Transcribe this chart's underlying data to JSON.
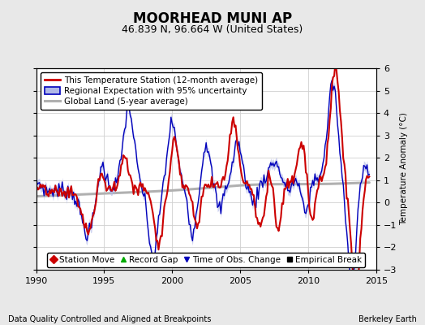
{
  "title": "MOORHEAD MUNI AP",
  "subtitle": "46.839 N, 96.664 W (United States)",
  "ylabel": "Temperature Anomaly (°C)",
  "xlabel_left": "Data Quality Controlled and Aligned at Breakpoints",
  "xlabel_right": "Berkeley Earth",
  "xlim": [
    1990,
    2015
  ],
  "ylim": [
    -3,
    6
  ],
  "yticks": [
    -3,
    -2,
    -1,
    0,
    1,
    2,
    3,
    4,
    5,
    6
  ],
  "xticks": [
    1990,
    1995,
    2000,
    2005,
    2010,
    2015
  ],
  "bg_color": "#e8e8e8",
  "plot_bg_color": "#ffffff",
  "grid_color": "#d0d0d0",
  "red_color": "#cc0000",
  "blue_color": "#0000bb",
  "blue_fill_color": "#b0b8e8",
  "gray_color": "#b0b0b0",
  "title_fontsize": 12,
  "subtitle_fontsize": 9,
  "legend_fontsize": 7.5,
  "tick_fontsize": 8,
  "footer_fontsize": 7
}
